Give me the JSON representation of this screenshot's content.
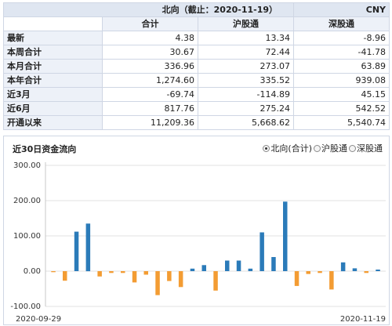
{
  "table": {
    "title": "北向（截止：2020-11-19）",
    "currency": "CNY",
    "columns": [
      "合计",
      "沪股通",
      "深股通"
    ],
    "rows": [
      {
        "label": "最新",
        "values": [
          "4.38",
          "13.34",
          "-8.96"
        ]
      },
      {
        "label": "本周合计",
        "values": [
          "30.67",
          "72.44",
          "-41.78"
        ]
      },
      {
        "label": "本月合计",
        "values": [
          "336.96",
          "273.07",
          "63.89"
        ]
      },
      {
        "label": "本年合计",
        "values": [
          "1,274.60",
          "335.52",
          "939.08"
        ]
      },
      {
        "label": "近3月",
        "values": [
          "-69.74",
          "-114.89",
          "45.15"
        ]
      },
      {
        "label": "近6月",
        "values": [
          "817.76",
          "275.24",
          "542.52"
        ]
      },
      {
        "label": "开通以来",
        "values": [
          "11,209.36",
          "5,668.62",
          "5,540.74"
        ]
      }
    ]
  },
  "panel": {
    "title": "近30日资金流向",
    "options": [
      {
        "label": "北向(合计)",
        "selected": true
      },
      {
        "label": "沪股通",
        "selected": false
      },
      {
        "label": "深股通",
        "selected": false
      }
    ]
  },
  "chart_data": {
    "type": "bar",
    "ylim": [
      -100,
      300
    ],
    "ytick_labels": [
      "300.00",
      "200.00",
      "100.00",
      "0.00",
      "-100.00"
    ],
    "xtick_labels": [
      "2020-09-29",
      "2020-11-19"
    ],
    "colors": {
      "positive": "#2b7bb9",
      "negative": "#f39c33"
    },
    "values": [
      -3,
      -27,
      112,
      135,
      -15,
      -5,
      -5,
      -32,
      -10,
      -68,
      -28,
      -45,
      7,
      17,
      -55,
      30,
      30,
      7,
      110,
      40,
      197,
      -42,
      -8,
      -5,
      -52,
      25,
      8,
      -5,
      4.38
    ]
  }
}
